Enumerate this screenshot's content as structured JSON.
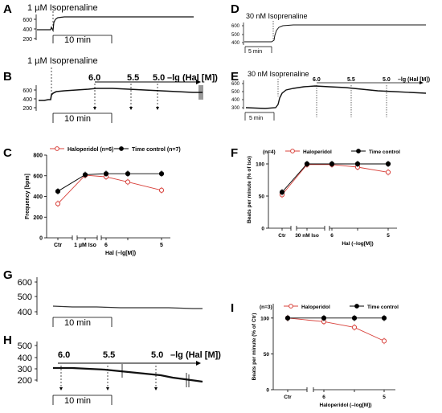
{
  "panels": {
    "A": {
      "letter": "A",
      "drug": "1 µM Isoprenaline",
      "yticks": [
        "600",
        "400",
        "200"
      ],
      "scalebar": "10 min"
    },
    "B": {
      "letter": "B",
      "drug": "1 µM Isoprenaline",
      "yticks": [
        "600",
        "400",
        "200"
      ],
      "scalebar": "10 min",
      "doses": [
        "6.0",
        "5.5",
        "5.0"
      ],
      "arrow_label": "–lg (Hal [M])"
    },
    "C": {
      "letter": "C"
    },
    "D": {
      "letter": "D",
      "drug": "30 nM Isoprenaline",
      "yticks": [
        "600",
        "500",
        "400"
      ],
      "scalebar": "5 min"
    },
    "E": {
      "letter": "E",
      "drug": "30 nM Isoprenaline",
      "yticks": [
        "600",
        "500",
        "400",
        "300"
      ],
      "scalebar": "5 min",
      "doses": [
        "6.0",
        "5.5",
        "5.0"
      ],
      "arrow_label": "–lg (Hal [M])"
    },
    "F": {
      "letter": "F"
    },
    "G": {
      "letter": "G",
      "yticks": [
        "600",
        "500",
        "400"
      ],
      "scalebar": "10 min"
    },
    "H": {
      "letter": "H",
      "yticks": [
        "500",
        "400",
        "300",
        "200"
      ],
      "scalebar": "10 min",
      "doses": [
        "6.0",
        "5.5",
        "5.0"
      ],
      "arrow_label": "–lg (Hal [M])"
    },
    "I": {
      "letter": "I"
    }
  },
  "colors": {
    "haloperidol": "#d8403a",
    "control": "#000000"
  },
  "chart_data": [
    {
      "panel": "C",
      "type": "scatter",
      "categories": [
        "Ctr",
        "1 µM Iso",
        "6",
        "",
        "5"
      ],
      "xlabel": "Hal (–lg[M])",
      "ylabel": "Frequency [bpm]",
      "ylim": [
        0,
        800
      ],
      "yticks": [
        0,
        200,
        400,
        600,
        800
      ],
      "legend": [
        "Haloperidol (n=6)",
        "Time control (n=7)"
      ],
      "series": [
        {
          "name": "Haloperidol (n=6)",
          "values": [
            330,
            605,
            590,
            540,
            460
          ]
        },
        {
          "name": "Time control (n=7)",
          "values": [
            450,
            610,
            620,
            620,
            620
          ]
        }
      ]
    },
    {
      "panel": "F",
      "type": "scatter",
      "categories": [
        "Ctr",
        "30 nM Iso",
        "6",
        "",
        "5"
      ],
      "xlabel": "Hal (–log[M])",
      "ylabel": "Beats per minute (% of Iso)",
      "ylim": [
        0,
        120
      ],
      "yticks": [
        0,
        50,
        100
      ],
      "legend_n": "(n=4)",
      "legend": [
        "Haloperidol",
        "Time control"
      ],
      "series": [
        {
          "name": "Haloperidol",
          "values": [
            52,
            99,
            99,
            95,
            87
          ]
        },
        {
          "name": "Time control",
          "values": [
            56,
            100,
            100,
            100,
            100
          ]
        }
      ]
    },
    {
      "panel": "I",
      "type": "scatter",
      "categories": [
        "Ctr",
        "6",
        "",
        "5"
      ],
      "xlabel": "Haloperidol (–log[M])",
      "ylabel": "Beats per minute (% of Ctr)",
      "ylim": [
        0,
        120
      ],
      "yticks": [
        0,
        50,
        100
      ],
      "legend_n": "(n=3)",
      "legend": [
        "Haloperidol",
        "Time control"
      ],
      "series": [
        {
          "name": "Haloperidol",
          "values": [
            100,
            95,
            87,
            68
          ]
        },
        {
          "name": "Time control",
          "values": [
            100,
            100,
            100,
            100
          ]
        }
      ]
    }
  ]
}
